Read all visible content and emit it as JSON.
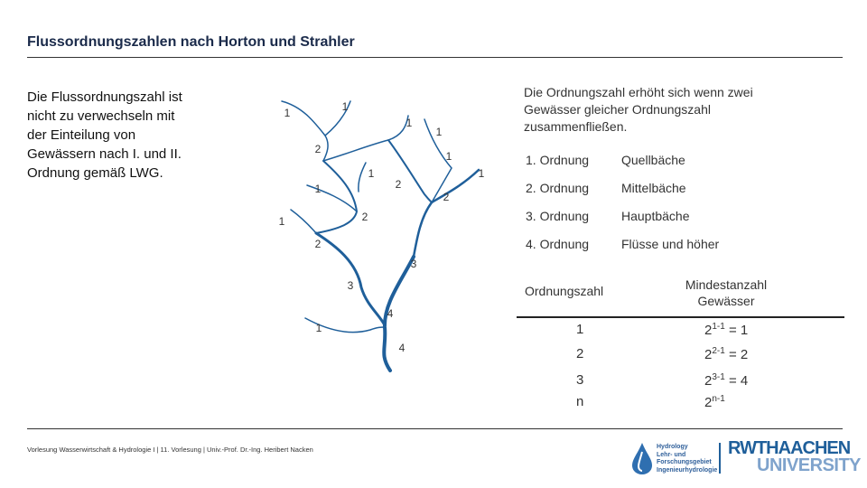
{
  "header": {
    "title": "Flussordnungszahlen nach Horton und Strahler"
  },
  "intro": {
    "lines": [
      "Die Flussordnungszahl ist",
      "nicht zu verwechseln mit",
      "der Einteilung von",
      "Gewässern nach   I. und II.",
      "Ordnung gemäß LWG."
    ]
  },
  "river": {
    "labels": [
      "1",
      "1",
      "1",
      "1",
      "2",
      "1",
      "1",
      "1",
      "2",
      "1",
      "2",
      "2",
      "1",
      "2",
      "3",
      "3",
      "4",
      "1",
      "4"
    ]
  },
  "rule": {
    "lines": [
      "Die Ordnungszahl erhöht sich wenn zwei",
      "Gewässer gleicher Ordnungszahl",
      "zusammenfließen."
    ]
  },
  "orders": {
    "rows": [
      [
        "1. Ordnung",
        "Quellbäche"
      ],
      [
        "2. Ordnung",
        "Mittelbäche"
      ],
      [
        "3. Ordnung",
        "Hauptbäche"
      ],
      [
        "4. Ordnung",
        "Flüsse und höher"
      ]
    ]
  },
  "min_table": {
    "headers": [
      "Ordnungszahl",
      "Mindestanzahl Gewässer"
    ],
    "rows": [
      {
        "order": "1",
        "base": "2",
        "exp": "1-1",
        "result": "= 1"
      },
      {
        "order": "2",
        "base": "2",
        "exp": "2-1",
        "result": "= 2"
      },
      {
        "order": "3",
        "base": "2",
        "exp": "3-1",
        "result": "= 4"
      },
      {
        "order": "n",
        "base": "2",
        "exp": "n-1"
      }
    ]
  },
  "footer": {
    "text": "Vorlesung Wasserwirtschaft & Hydrologie I | 11. Vorlesung | Univ.-Prof. Dr.-Ing. Heribert Nacken",
    "hydro_logo": [
      "Hydrology",
      "Lehr- und",
      "Forschungsgebiet",
      "Ingenieurhydrologie"
    ],
    "rwth_logo": [
      "RWTHAACHEN",
      "UNIVERSITY"
    ]
  }
}
